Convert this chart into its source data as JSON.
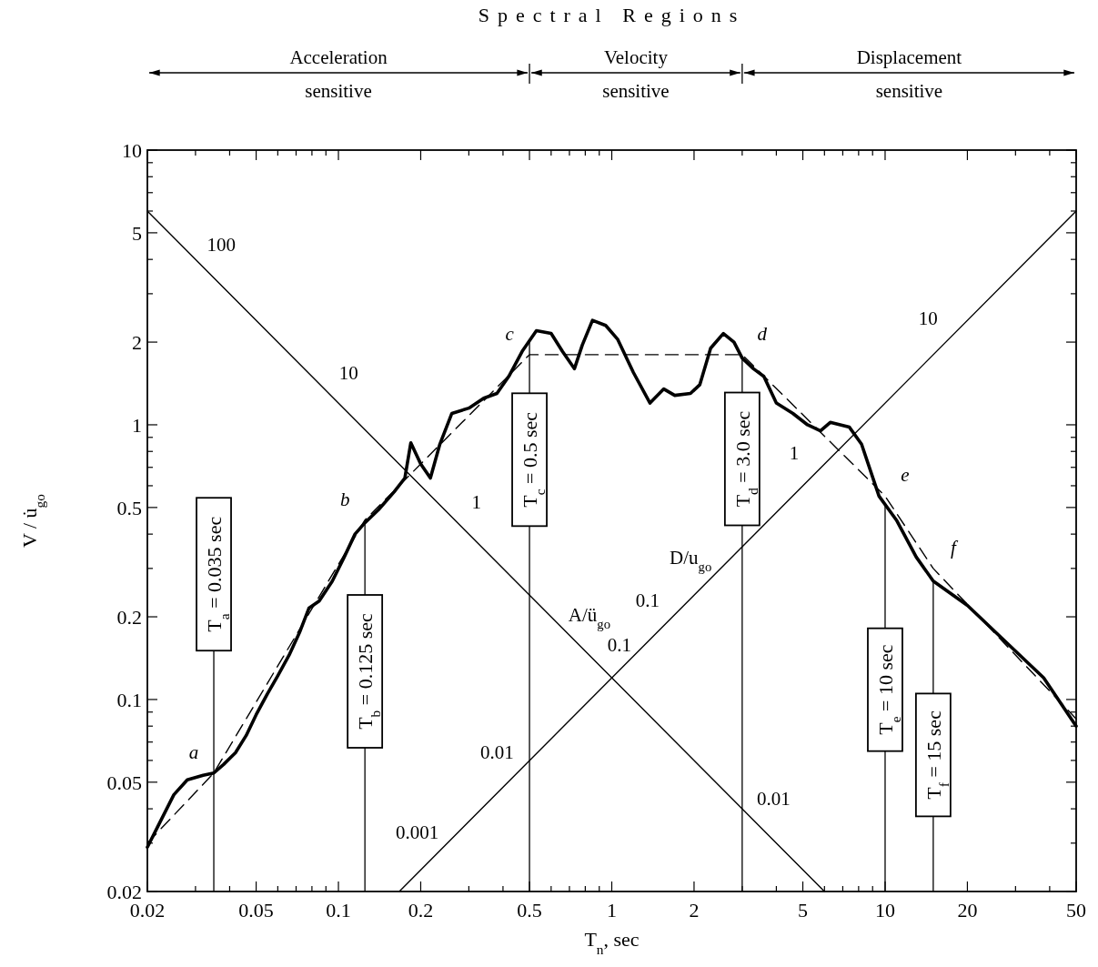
{
  "chart_data": {
    "type": "line",
    "title": "Spectral Regions",
    "xlabel": "T$_{n}$, sec",
    "ylabel": "V / u̇$_{go}$",
    "log": "xy",
    "xlim": [
      0.02,
      50
    ],
    "ylim": [
      0.02,
      10
    ],
    "xticks": [
      0.02,
      {
        "value": 0.03,
        "label": null
      },
      {
        "value": 0.04,
        "label": null
      },
      0.05,
      {
        "value": 0.06,
        "label": null
      },
      {
        "value": 0.07,
        "label": null
      },
      {
        "value": 0.08,
        "label": null
      },
      {
        "value": 0.09,
        "label": null
      },
      0.1,
      0.2,
      {
        "value": 0.3,
        "label": null
      },
      {
        "value": 0.4,
        "label": null
      },
      0.5,
      {
        "value": 0.6,
        "label": null
      },
      {
        "value": 0.7,
        "label": null
      },
      {
        "value": 0.8,
        "label": null
      },
      {
        "value": 0.9,
        "label": null
      },
      1,
      2,
      {
        "value": 3,
        "label": null
      },
      {
        "value": 4,
        "label": null
      },
      5,
      {
        "value": 6,
        "label": null
      },
      {
        "value": 7,
        "label": null
      },
      {
        "value": 8,
        "label": null
      },
      {
        "value": 9,
        "label": null
      },
      10,
      20,
      {
        "value": 30,
        "label": null
      },
      {
        "value": 40,
        "label": null
      },
      50
    ],
    "yticks": [
      0.02,
      {
        "value": 0.03,
        "label": null
      },
      {
        "value": 0.04,
        "label": null
      },
      0.05,
      {
        "value": 0.06,
        "label": null
      },
      {
        "value": 0.07,
        "label": null
      },
      {
        "value": 0.08,
        "label": null
      },
      {
        "value": 0.09,
        "label": null
      },
      0.1,
      0.2,
      {
        "value": 0.3,
        "label": null
      },
      {
        "value": 0.4,
        "label": null
      },
      0.5,
      {
        "value": 0.6,
        "label": null
      },
      {
        "value": 0.7,
        "label": null
      },
      {
        "value": 0.8,
        "label": null
      },
      {
        "value": 0.9,
        "label": null
      },
      1,
      2,
      {
        "value": 3,
        "label": null
      },
      {
        "value": 4,
        "label": null
      },
      5,
      {
        "value": 6,
        "label": null
      },
      {
        "value": 7,
        "label": null
      },
      {
        "value": 8,
        "label": null
      },
      {
        "value": 9,
        "label": null
      },
      10
    ],
    "series": [
      {
        "color": "#000000",
        "line_style": "solid",
        "x": [
          0.02,
          0.022,
          0.025,
          0.028,
          0.032,
          0.035,
          0.038,
          0.042,
          0.046,
          0.05,
          0.055,
          0.06,
          0.066,
          0.072,
          0.078,
          0.085,
          0.095,
          0.105,
          0.115,
          0.125,
          0.14,
          0.16,
          0.175,
          0.184,
          0.2,
          0.217,
          0.235,
          0.26,
          0.3,
          0.34,
          0.38,
          0.42,
          0.47,
          0.53,
          0.6,
          0.66,
          0.73,
          0.78,
          0.85,
          0.95,
          1.05,
          1.2,
          1.38,
          1.55,
          1.7,
          1.94,
          2.1,
          2.3,
          2.56,
          2.8,
          3.0,
          3.3,
          3.6,
          4.0,
          4.6,
          5.2,
          5.8,
          6.3,
          7.4,
          8.2,
          9.5,
          11,
          13,
          15,
          20,
          28,
          38,
          50
        ],
        "values": [
          0.029,
          0.035,
          0.045,
          0.051,
          0.053,
          0.054,
          0.058,
          0.064,
          0.074,
          0.088,
          0.105,
          0.122,
          0.145,
          0.175,
          0.215,
          0.228,
          0.27,
          0.33,
          0.4,
          0.44,
          0.49,
          0.57,
          0.64,
          0.86,
          0.72,
          0.64,
          0.85,
          1.1,
          1.15,
          1.25,
          1.3,
          1.5,
          1.85,
          2.2,
          2.15,
          1.85,
          1.6,
          1.95,
          2.4,
          2.3,
          2.05,
          1.55,
          1.2,
          1.35,
          1.28,
          1.3,
          1.4,
          1.9,
          2.15,
          2.0,
          1.75,
          1.6,
          1.5,
          1.2,
          1.1,
          1.0,
          0.95,
          1.02,
          0.98,
          0.85,
          0.55,
          0.45,
          0.33,
          0.27,
          0.22,
          0.16,
          0.12,
          0.08
        ]
      },
      {
        "color": "#000000",
        "line_style": "dashed",
        "x": [
          0.02,
          0.035,
          0.125,
          0.5,
          3,
          10,
          15,
          50
        ],
        "values": [
          0.03,
          0.054,
          0.45,
          1.8,
          1.8,
          0.55,
          0.3,
          0.085
        ]
      },
      {
        "color": "#000000",
        "line_style": "solid",
        "x": [
          0.02,
          6
        ],
        "values": [
          6,
          0.02
        ]
      },
      {
        "color": "#000000",
        "line_style": "solid",
        "x": [
          0.167,
          50
        ],
        "values": [
          0.02,
          6
        ]
      }
    ],
    "ref_lines": [
      {
        "axis": "x",
        "value": 0.035,
        "label": "T$_{a}$ = 0.035 sec"
      },
      {
        "axis": "x",
        "value": 0.125,
        "label": "T$_{b}$ = 0.125 sec"
      },
      {
        "axis": "x",
        "value": 0.5,
        "label": "T$_{c}$ = 0.5 sec"
      },
      {
        "axis": "x",
        "value": 3,
        "label": "T$_{d}$ = 3.0 sec"
      },
      {
        "axis": "x",
        "value": 10,
        "label": "T$_{e}$ = 10 sec"
      },
      {
        "axis": "x",
        "value": 15,
        "label": "T$_{f}$ = 15 sec"
      }
    ],
    "annotations": [
      {
        "text": "a",
        "x": 0.035,
        "y": 0.054
      },
      {
        "text": "b",
        "x": 0.125,
        "y": 0.45
      },
      {
        "text": "c",
        "x": 0.5,
        "y": 1.8
      },
      {
        "text": "d",
        "x": 3,
        "y": 1.8
      },
      {
        "text": "e",
        "x": 10,
        "y": 0.55
      },
      {
        "text": "f",
        "x": 15,
        "y": 0.3
      },
      {
        "text": "100",
        "x": 0.0315,
        "y": 3.8
      },
      {
        "text": "10",
        "x": 0.092,
        "y": 1.3
      },
      {
        "text": "1",
        "x": 0.27,
        "y": 0.44
      },
      {
        "text": "A/ü$_{go}$",
        "x": 0.7,
        "y": 0.171
      },
      {
        "text": "0.1",
        "x": 0.9,
        "y": 0.133
      },
      {
        "text": "0.01",
        "x": 3.3,
        "y": 0.0364
      },
      {
        "text": "0.001",
        "x": 0.23,
        "y": 0.0276
      },
      {
        "text": "0.01",
        "x": 0.45,
        "y": 0.054
      },
      {
        "text": "0.1",
        "x": 1.6,
        "y": 0.192
      },
      {
        "text": "D/u$_{go}$",
        "x": 2.3,
        "y": 0.276
      },
      {
        "text": "1",
        "x": 5.5,
        "y": 0.66
      },
      {
        "text": "10",
        "x": 17,
        "y": 2.04
      },
      "Acceleration sensitive",
      "Velocity sensitive",
      "Displacement sensitive"
    ]
  }
}
